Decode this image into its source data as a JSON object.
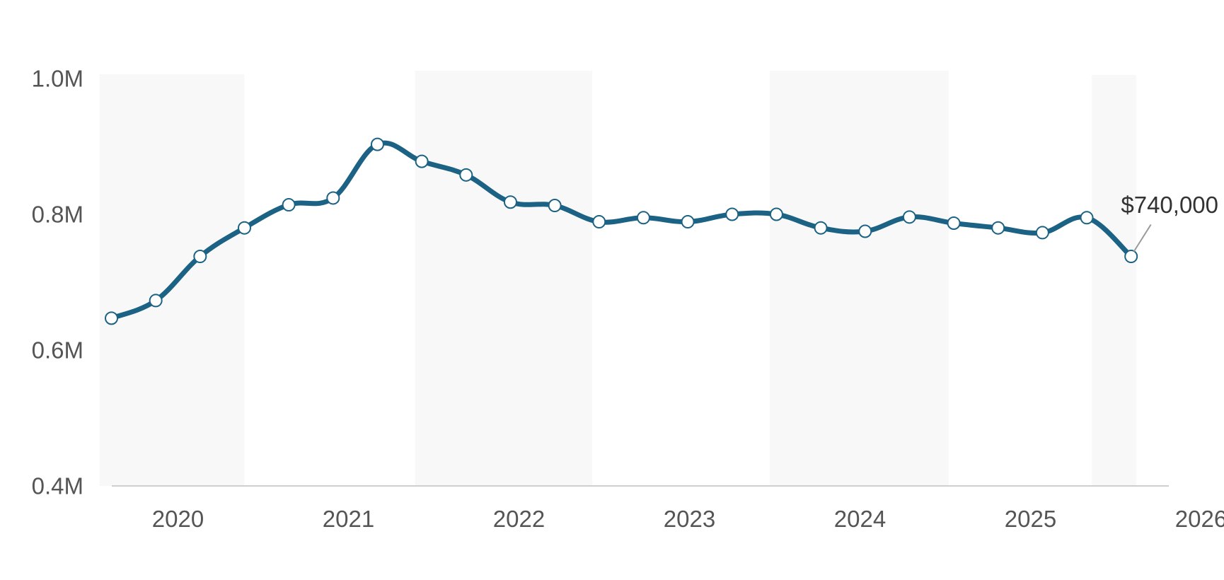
{
  "colors": {
    "line": "#1b6284",
    "marker_fill": "#ffffff",
    "band": "#f8f8f8",
    "axis": "#cfcfcf",
    "tick_text": "#555555",
    "callout_line": "#9a9a9a"
  },
  "chart_data": {
    "type": "line",
    "title": "",
    "xlabel": "",
    "ylabel": "",
    "x_axis": "time (years, quarterly points)",
    "ylim": [
      0.4,
      1.0
    ],
    "y_ticks": [
      {
        "value": 1.0,
        "label": "1.0M"
      },
      {
        "value": 0.8,
        "label": "0.8M"
      },
      {
        "value": 0.6,
        "label": "0.6M"
      },
      {
        "value": 0.4,
        "label": "0.4M"
      }
    ],
    "xlim": [
      2019.54,
      2026.0
    ],
    "x_ticks": [
      {
        "value": 2020.0,
        "label": "2020"
      },
      {
        "value": 2021.0,
        "label": "2021"
      },
      {
        "value": 2022.0,
        "label": "2022"
      },
      {
        "value": 2023.0,
        "label": "2023"
      },
      {
        "value": 2024.0,
        "label": "2024"
      },
      {
        "value": 2025.0,
        "label": "2025"
      },
      {
        "value": 2026.0,
        "label": "2026"
      }
    ],
    "shaded_bands": [
      [
        2019.54,
        2020.39
      ],
      [
        2021.39,
        2022.43
      ],
      [
        2023.47,
        2024.52
      ],
      [
        2025.36,
        2025.62
      ]
    ],
    "grid": false,
    "legend": "none",
    "series": [
      {
        "x": [
          2019.61,
          2019.87,
          2020.13,
          2020.39,
          2020.65,
          2020.91,
          2021.17,
          2021.43,
          2021.69,
          2021.95,
          2022.21,
          2022.47,
          2022.73,
          2022.99,
          2023.25,
          2023.51,
          2023.77,
          2024.03,
          2024.29,
          2024.55,
          2024.81,
          2025.07,
          2025.33,
          2025.59
        ],
        "values": [
          0.647,
          0.673,
          0.738,
          0.78,
          0.814,
          0.824,
          0.903,
          0.878,
          0.858,
          0.818,
          0.813,
          0.789,
          0.795,
          0.789,
          0.8,
          0.8,
          0.78,
          0.775,
          0.796,
          0.787,
          0.78,
          0.773,
          0.795,
          0.738
        ]
      }
    ],
    "annotations": [
      {
        "text": "$740,000",
        "point_index": 23
      }
    ]
  }
}
